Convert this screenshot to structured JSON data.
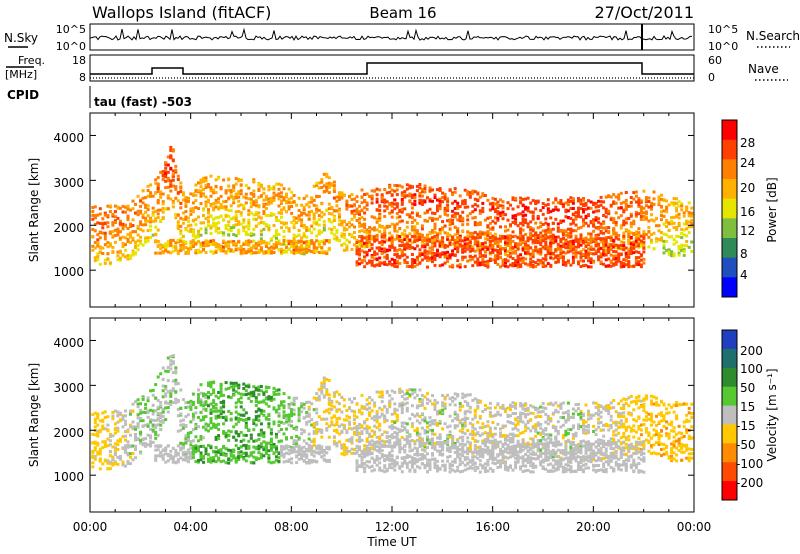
{
  "header": {
    "station": "Wallops Island (fitACF)",
    "beam": "Beam 16",
    "date": "27/Oct/2011"
  },
  "strips": {
    "nsky": {
      "label": "N.Sky",
      "ticks": [
        "10^5",
        "10^0"
      ],
      "right_ticks": [
        "10^5",
        "10^0"
      ],
      "right_label": "N.Search"
    },
    "freq": {
      "label_top": "Freq.",
      "label_unit": "[MHz]",
      "ticks": [
        "18",
        "8"
      ],
      "right_ticks": [
        "60",
        "0"
      ],
      "right_label": "Nave"
    },
    "cpid": {
      "label": "CPID",
      "value": "tau (fast) -503"
    }
  },
  "panels": {
    "ylabel": "Slant Range [km]",
    "yticks": [
      "1000",
      "2000",
      "3000",
      "4000"
    ],
    "xlabel": "Time UT",
    "xticks": [
      "00:00",
      "04:00",
      "08:00",
      "12:00",
      "16:00",
      "20:00",
      "00:00"
    ]
  },
  "colorbars": {
    "power": {
      "title": "Power [dB]",
      "ticks": [
        "28",
        "24",
        "20",
        "16",
        "12",
        "8",
        "4"
      ],
      "colors": [
        "#ff0000",
        "#ff4000",
        "#ff7f00",
        "#ffb000",
        "#e5e500",
        "#7fbf3f",
        "#2e8b57",
        "#1f4fbf",
        "#0000ff"
      ]
    },
    "velocity": {
      "title": "Velocity [m s⁻¹]",
      "ticks": [
        "200",
        "100",
        "50",
        "15",
        "-15",
        "-50",
        "-100",
        "-200"
      ],
      "colors": [
        "#1f3fbf",
        "#1f6f6f",
        "#2e8b2e",
        "#55c832",
        "#bebebe",
        "#ffc800",
        "#ff8c00",
        "#ff4a00",
        "#ff0000"
      ]
    }
  },
  "chart_data": [
    {
      "type": "heatmap",
      "title": "Power [dB]",
      "xlabel": "Time UT",
      "ylabel": "Slant Range [km]",
      "xlim": [
        0,
        24
      ],
      "ylim": [
        180,
        4500
      ],
      "zlim": [
        0,
        30
      ],
      "time_hours": [
        0.5,
        1.5,
        2.5,
        3.2,
        3.7,
        4.5,
        5.5,
        6.5,
        7.5,
        8.5,
        9.3,
        10.0,
        11.0,
        12.0,
        13.0,
        14.0,
        15.0,
        16.0,
        17.0,
        18.0,
        19.0,
        20.0,
        21.0,
        22.0,
        23.0
      ],
      "layer_center_km": [
        2100,
        2200,
        2700,
        3500,
        2300,
        2800,
        2750,
        2700,
        2600,
        2300,
        2900,
        2400,
        2500,
        2600,
        2600,
        2500,
        2500,
        2300,
        2300,
        2300,
        2300,
        2300,
        2400,
        2500,
        2300
      ],
      "layer_power_db": [
        25,
        24,
        22,
        28,
        22,
        22,
        21,
        21,
        21,
        22,
        22,
        22,
        26,
        26,
        27,
        27,
        27,
        27,
        28,
        28,
        28,
        28,
        26,
        25,
        20
      ],
      "lower_band_km": [
        1200,
        1500
      ],
      "lower_band_hours": [
        2.5,
        9.5
      ],
      "lower_band_power_db": 20
    },
    {
      "type": "heatmap",
      "title": "Velocity [m s⁻¹]",
      "xlabel": "Time UT",
      "ylabel": "Slant Range [km]",
      "xlim": [
        0,
        24
      ],
      "ylim": [
        180,
        4500
      ],
      "zlim": [
        -200,
        200
      ],
      "time_hours": [
        0.5,
        2.0,
        3.5,
        5.0,
        6.5,
        8.0,
        9.5,
        11.0,
        12.5,
        14.0,
        15.5,
        17.0,
        18.5,
        20.0,
        21.5,
        23.0
      ],
      "mean_velocity_ms": [
        -30,
        10,
        5,
        40,
        50,
        20,
        -20,
        -10,
        0,
        0,
        -5,
        -5,
        0,
        0,
        -30,
        -40
      ]
    }
  ]
}
